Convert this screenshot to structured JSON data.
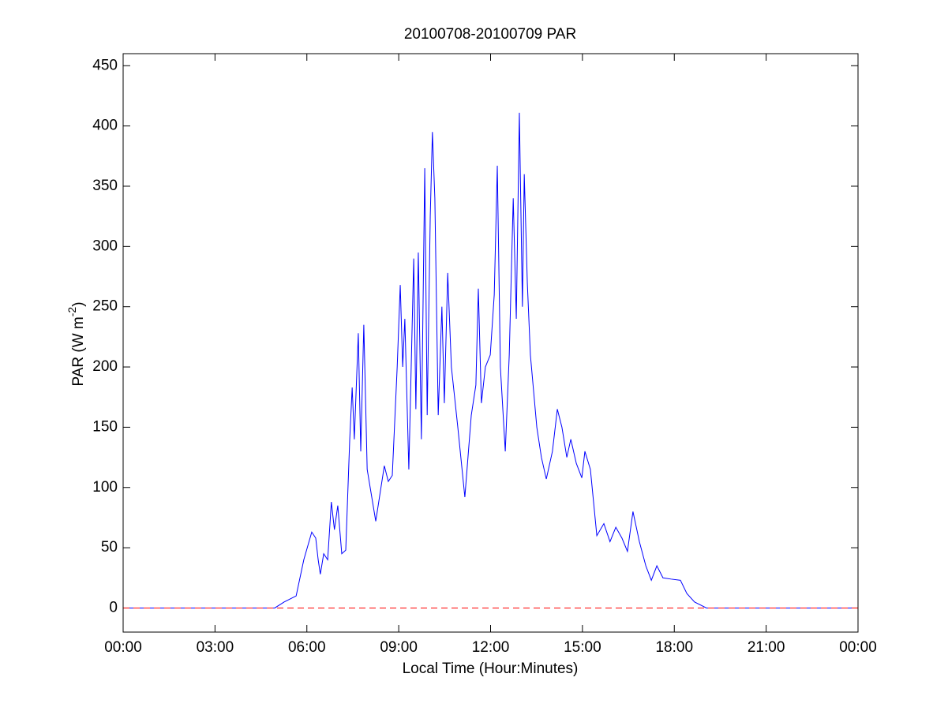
{
  "chart_data": {
    "type": "line",
    "title": "20100708-20100709 PAR",
    "xlabel": "Local Time (Hour:Minutes)",
    "ylabel": {
      "text": "PAR (W m",
      "sup": "-2",
      "close": ")"
    },
    "xlim": [
      0,
      24
    ],
    "xticks": [
      {
        "value": 0,
        "label": "00:00"
      },
      {
        "value": 3,
        "label": "03:00"
      },
      {
        "value": 6,
        "label": "06:00"
      },
      {
        "value": 9,
        "label": "09:00"
      },
      {
        "value": 12,
        "label": "12:00"
      },
      {
        "value": 15,
        "label": "15:00"
      },
      {
        "value": 18,
        "label": "18:00"
      },
      {
        "value": 21,
        "label": "21:00"
      },
      {
        "value": 24,
        "label": "00:00"
      }
    ],
    "ylim": [
      -20,
      460
    ],
    "yticks": [
      0,
      50,
      100,
      150,
      200,
      250,
      300,
      350,
      400,
      450
    ],
    "reference_line": {
      "value": 0,
      "color": "#ff0000"
    },
    "series": [
      {
        "color": "#0000ff",
        "x": [
          0,
          4.95,
          5.26,
          5.65,
          5.9,
          6.16,
          6.29,
          6.37,
          6.44,
          6.55,
          6.68,
          6.8,
          6.9,
          7.01,
          7.14,
          7.27,
          7.4,
          7.48,
          7.55,
          7.68,
          7.76,
          7.86,
          7.97,
          8.25,
          8.53,
          8.66,
          8.79,
          8.95,
          9.05,
          9.13,
          9.2,
          9.33,
          9.49,
          9.56,
          9.64,
          9.74,
          9.85,
          9.93,
          10.03,
          10.1,
          10.18,
          10.29,
          10.41,
          10.49,
          10.6,
          10.72,
          10.93,
          11.16,
          11.37,
          11.52,
          11.6,
          11.7,
          11.83,
          11.99,
          12.12,
          12.22,
          12.32,
          12.48,
          12.61,
          12.74,
          12.84,
          12.94,
          13.04,
          13.1,
          13.2,
          13.3,
          13.51,
          13.66,
          13.82,
          14.02,
          14.18,
          14.33,
          14.49,
          14.62,
          14.8,
          14.98,
          15.08,
          15.26,
          15.47,
          15.7,
          15.9,
          16.09,
          16.29,
          16.47,
          16.65,
          16.86,
          17.07,
          17.25,
          17.43,
          17.63,
          17.89,
          18.2,
          18.41,
          18.66,
          19.05,
          24
        ],
        "values": [
          0,
          0,
          5,
          10,
          40,
          63,
          58,
          40,
          28,
          45,
          40,
          88,
          65,
          85,
          45,
          48,
          140,
          183,
          140,
          228,
          130,
          235,
          115,
          72,
          118,
          105,
          110,
          200,
          268,
          200,
          240,
          115,
          290,
          165,
          295,
          140,
          365,
          160,
          325,
          395,
          340,
          160,
          250,
          170,
          278,
          200,
          150,
          92,
          160,
          185,
          265,
          170,
          200,
          210,
          260,
          367,
          200,
          130,
          210,
          340,
          240,
          411,
          250,
          360,
          270,
          210,
          150,
          125,
          107,
          130,
          165,
          150,
          125,
          140,
          120,
          108,
          130,
          115,
          60,
          70,
          55,
          67,
          58,
          47,
          80,
          55,
          35,
          23,
          35,
          25,
          24,
          23,
          12,
          5,
          0,
          0
        ]
      }
    ]
  }
}
